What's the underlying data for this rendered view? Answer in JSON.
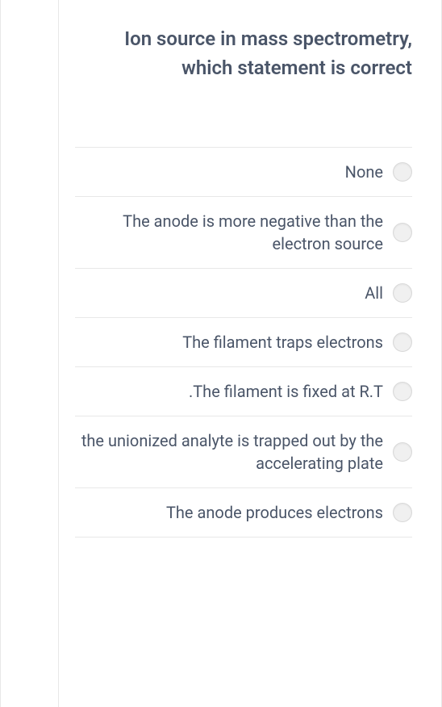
{
  "question": {
    "title": "Ion source in mass spectrometry, which statement is correct"
  },
  "options": [
    {
      "label": "None"
    },
    {
      "label": "The anode is more negative than the electron source"
    },
    {
      "label": "All"
    },
    {
      "label": "The filament traps electrons"
    },
    {
      "label": ".The filament is fixed at R.T"
    },
    {
      "label": "the unionized analyte is trapped out by the accelerating plate"
    },
    {
      "label": "The anode produces electrons"
    }
  ],
  "colors": {
    "text": "#4a5568",
    "border": "#e8e8e8",
    "radio_bg": "#f0f0f0",
    "radio_border": "#d8d8d8"
  }
}
